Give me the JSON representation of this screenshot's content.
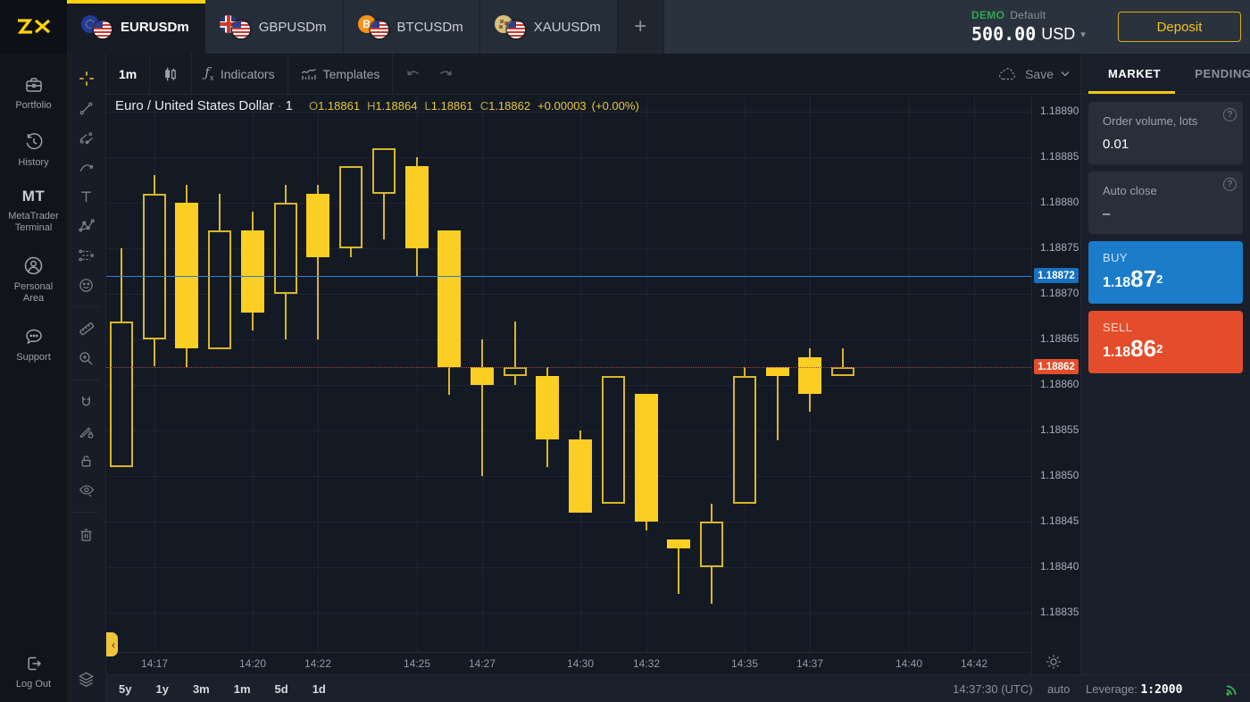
{
  "colors": {
    "accent_yellow": "#FFD20A",
    "buy_blue": "#1B7CC9",
    "sell_red": "#E34D2C",
    "demo_green": "#2EA84F",
    "candle_yellow": "#FBCE24"
  },
  "topbar": {
    "tabs": [
      {
        "label": "EURUSDm",
        "flag": "eu",
        "active": true
      },
      {
        "label": "GBPUSDm",
        "flag": "gb",
        "active": false
      },
      {
        "label": "BTCUSDm",
        "flag": "btc",
        "active": false
      },
      {
        "label": "XAUUSDm",
        "flag": "gold",
        "active": false
      }
    ],
    "add_tab": "+",
    "account": {
      "mode": "DEMO",
      "profile": "Default",
      "balance": "500.00",
      "currency": "USD"
    },
    "deposit": "Deposit"
  },
  "sidenav": {
    "portfolio": "Portfolio",
    "history": "History",
    "mt_logo": "MT",
    "mt_label_1": "MetaTrader",
    "mt_label_2": "Terminal",
    "personal_1": "Personal",
    "personal_2": "Area",
    "support": "Support",
    "logout": "Log Out"
  },
  "drawing_toolbar": {
    "tools": [
      "crosshair",
      "trend-line",
      "channel",
      "curve",
      "text",
      "pattern",
      "forecast",
      "emoji",
      "ruler",
      "zoom-in",
      "magnet",
      "drawing-mode",
      "lock-all",
      "hide-all",
      "remove-all",
      "object-tree"
    ]
  },
  "toolbar": {
    "timeframe": "1m",
    "indicators": "Indicators",
    "templates": "Templates",
    "save": "Save"
  },
  "chart_header": {
    "title": "Euro / United States Dollar",
    "sep": "·",
    "interval": "1",
    "o_label": "O",
    "o": "1.18861",
    "h_label": "H",
    "h": "1.18864",
    "l_label": "L",
    "l": "1.18861",
    "c_label": "C",
    "c": "1.18862",
    "change": "+0.00003",
    "change_pct": "(+0.00%)"
  },
  "order_panel": {
    "tabs": {
      "market": "MARKET",
      "pending": "PENDING"
    },
    "volume": {
      "label": "Order volume, lots",
      "value": "0.01"
    },
    "auto_close": {
      "label": "Auto close",
      "value": "–"
    },
    "buy": {
      "label": "BUY",
      "price_base": "1.18",
      "price_big": "87",
      "price_sup": "2"
    },
    "sell": {
      "label": "SELL",
      "price_base": "1.18",
      "price_big": "86",
      "price_sup": "2"
    }
  },
  "footer": {
    "ranges": [
      "5y",
      "1y",
      "3m",
      "1m",
      "5d",
      "1d"
    ],
    "clock": "14:37:30 (UTC)",
    "mode": "auto",
    "leverage_label": "Leverage:",
    "leverage_value": "1:2000"
  },
  "chart_data": {
    "type": "candlestick",
    "symbol": "EURUSDm",
    "timeframe": "1m",
    "price_axis": {
      "max": 1.1889,
      "min": 1.18835,
      "step": 5e-05,
      "labels": [
        "1.18890",
        "1.18885",
        "1.18880",
        "1.18875",
        "1.18870",
        "1.18865",
        "1.18860",
        "1.18855",
        "1.18850",
        "1.18845",
        "1.18840",
        "1.18835"
      ]
    },
    "ask_price": 1.18872,
    "ask_label": "1.18872",
    "bid_price": 1.18862,
    "bid_label": "1.18862",
    "time_labels": [
      {
        "t": "14:17",
        "slot": 1
      },
      {
        "t": "14:20",
        "slot": 4
      },
      {
        "t": "14:22",
        "slot": 6
      },
      {
        "t": "14:25",
        "slot": 9
      },
      {
        "t": "14:27",
        "slot": 11
      },
      {
        "t": "14:30",
        "slot": 14
      },
      {
        "t": "14:32",
        "slot": 16
      },
      {
        "t": "14:35",
        "slot": 19
      },
      {
        "t": "14:37",
        "slot": 21
      },
      {
        "t": "14:40",
        "slot": 24
      },
      {
        "t": "14:42",
        "slot": 26
      }
    ],
    "candles": [
      {
        "t": "14:16",
        "o": 1.18851,
        "h": 1.18875,
        "l": 1.18851,
        "c": 1.18867,
        "bull": true
      },
      {
        "t": "14:17",
        "o": 1.18865,
        "h": 1.18883,
        "l": 1.18862,
        "c": 1.18881,
        "bull": true
      },
      {
        "t": "14:18",
        "o": 1.1888,
        "h": 1.18882,
        "l": 1.18862,
        "c": 1.18864,
        "bull": false
      },
      {
        "t": "14:19",
        "o": 1.18864,
        "h": 1.18881,
        "l": 1.18864,
        "c": 1.18877,
        "bull": true
      },
      {
        "t": "14:20",
        "o": 1.18877,
        "h": 1.18879,
        "l": 1.18866,
        "c": 1.18868,
        "bull": false
      },
      {
        "t": "14:21",
        "o": 1.1887,
        "h": 1.18882,
        "l": 1.18865,
        "c": 1.1888,
        "bull": true
      },
      {
        "t": "14:22",
        "o": 1.18881,
        "h": 1.18882,
        "l": 1.18865,
        "c": 1.18874,
        "bull": false
      },
      {
        "t": "14:23",
        "o": 1.18875,
        "h": 1.18884,
        "l": 1.18874,
        "c": 1.18884,
        "bull": true
      },
      {
        "t": "14:24",
        "o": 1.18881,
        "h": 1.18886,
        "l": 1.18876,
        "c": 1.18886,
        "bull": true
      },
      {
        "t": "14:25",
        "o": 1.18884,
        "h": 1.18885,
        "l": 1.18872,
        "c": 1.18875,
        "bull": false
      },
      {
        "t": "14:26",
        "o": 1.18877,
        "h": 1.18877,
        "l": 1.18859,
        "c": 1.18862,
        "bull": false
      },
      {
        "t": "14:27",
        "o": 1.18862,
        "h": 1.18865,
        "l": 1.1885,
        "c": 1.1886,
        "bull": false
      },
      {
        "t": "14:28",
        "o": 1.18861,
        "h": 1.18867,
        "l": 1.1886,
        "c": 1.18862,
        "bull": true
      },
      {
        "t": "14:29",
        "o": 1.18861,
        "h": 1.18862,
        "l": 1.18851,
        "c": 1.18854,
        "bull": false
      },
      {
        "t": "14:30",
        "o": 1.18854,
        "h": 1.18855,
        "l": 1.18846,
        "c": 1.18846,
        "bull": false
      },
      {
        "t": "14:31",
        "o": 1.18847,
        "h": 1.18861,
        "l": 1.18847,
        "c": 1.18861,
        "bull": true
      },
      {
        "t": "14:32",
        "o": 1.18859,
        "h": 1.18859,
        "l": 1.18844,
        "c": 1.18845,
        "bull": false
      },
      {
        "t": "14:33",
        "o": 1.18843,
        "h": 1.18843,
        "l": 1.18837,
        "c": 1.18842,
        "bull": false
      },
      {
        "t": "14:34",
        "o": 1.1884,
        "h": 1.18847,
        "l": 1.18836,
        "c": 1.18845,
        "bull": true
      },
      {
        "t": "14:35",
        "o": 1.18847,
        "h": 1.18862,
        "l": 1.18847,
        "c": 1.18861,
        "bull": true
      },
      {
        "t": "14:36",
        "o": 1.18862,
        "h": 1.18862,
        "l": 1.18854,
        "c": 1.18861,
        "bull": false
      },
      {
        "t": "14:37",
        "o": 1.18863,
        "h": 1.18864,
        "l": 1.18857,
        "c": 1.18859,
        "bull": false
      },
      {
        "t": "14:38",
        "o": 1.18861,
        "h": 1.18864,
        "l": 1.18861,
        "c": 1.18862,
        "bull": true
      }
    ]
  }
}
